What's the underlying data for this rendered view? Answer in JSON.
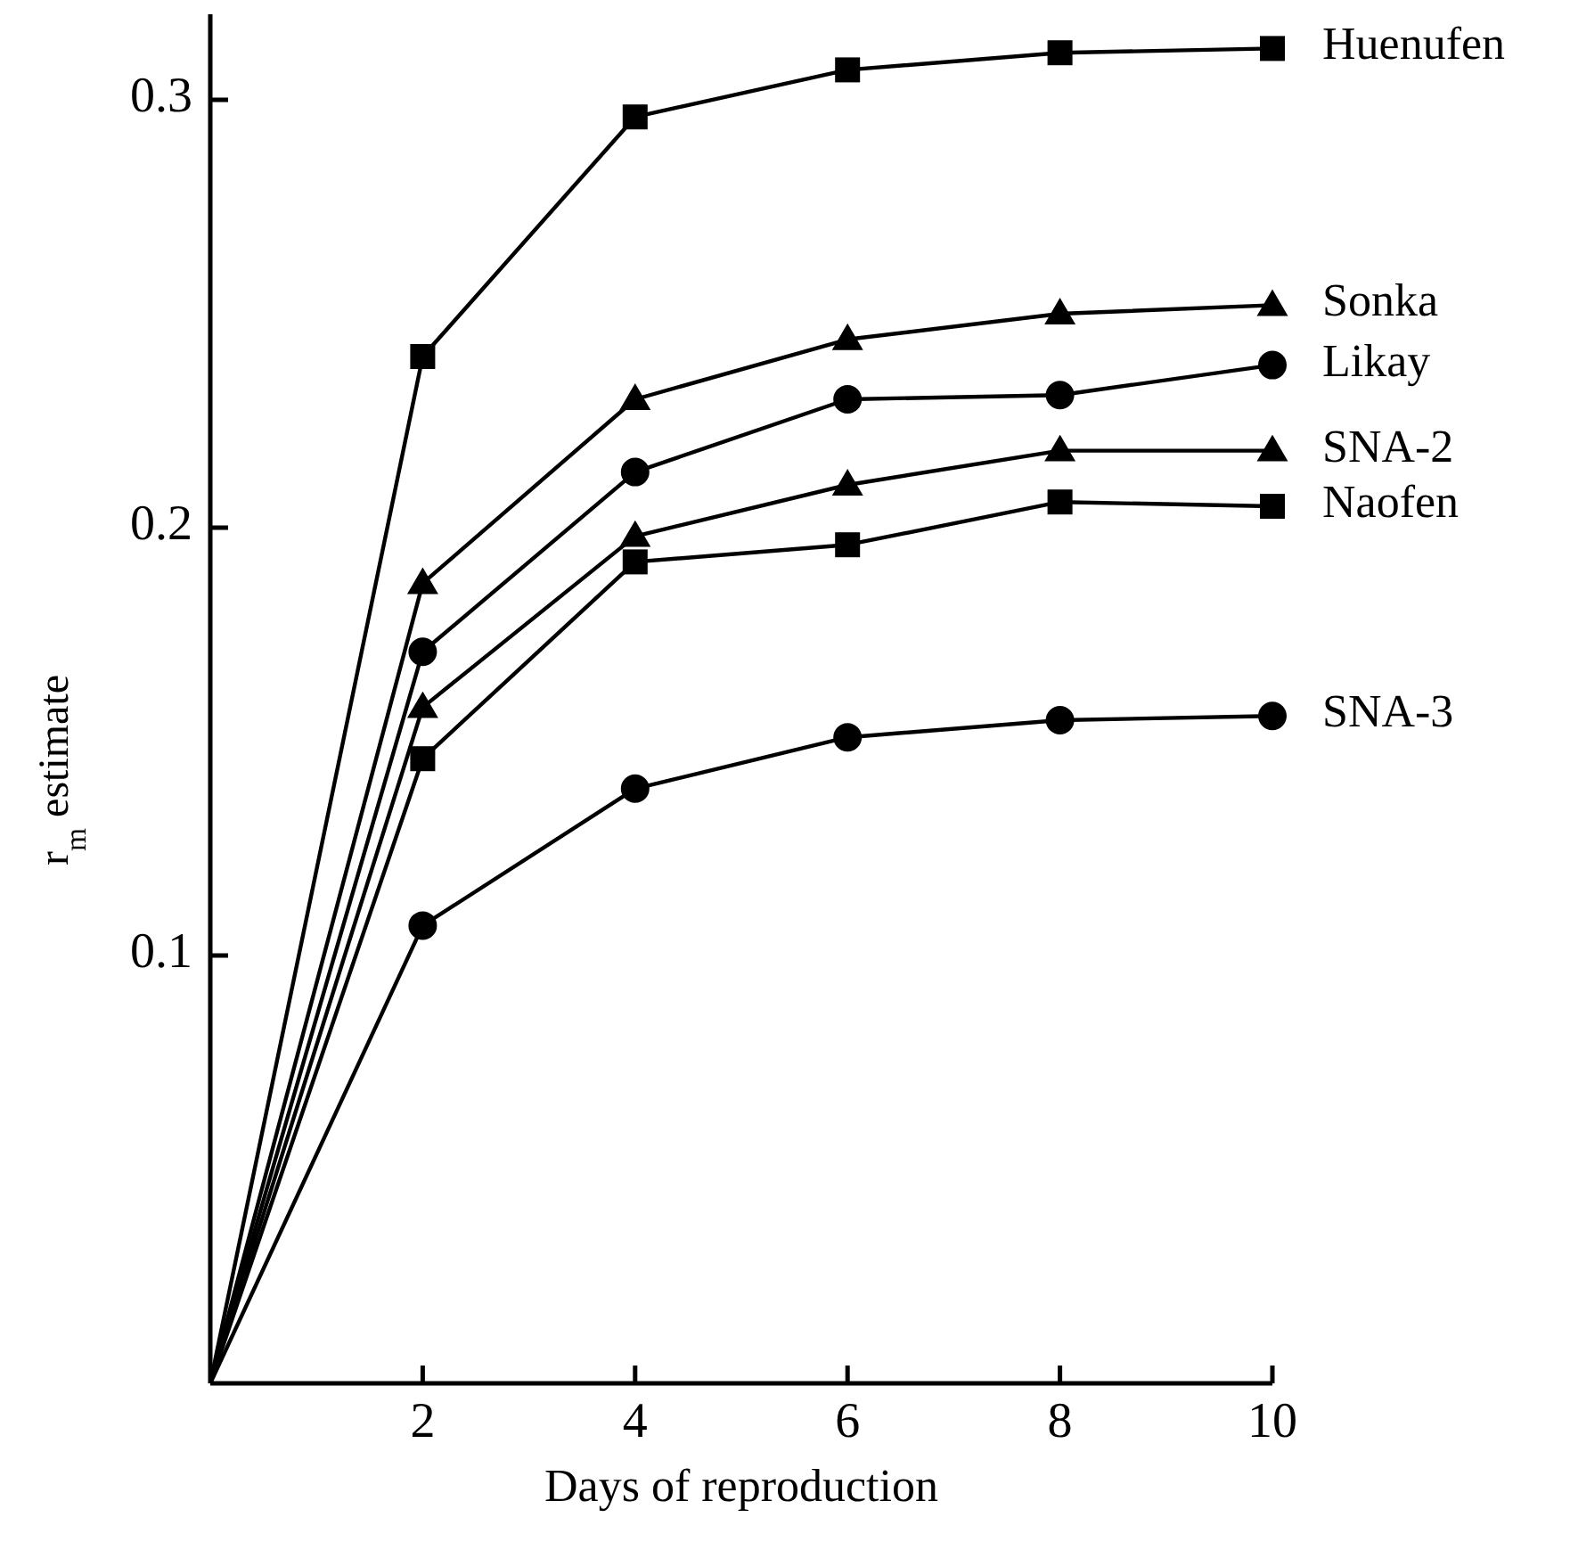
{
  "chart_data": {
    "type": "line",
    "xlabel": "Days of reproduction",
    "ylabel": "r$_{m}$ estimate",
    "xlim": [
      0,
      10
    ],
    "ylim": [
      0,
      0.32
    ],
    "xticks": [
      2,
      4,
      6,
      8,
      10
    ],
    "yticks": [
      0.1,
      0.2,
      0.3
    ],
    "x": [
      0,
      2,
      4,
      6,
      8,
      10
    ],
    "grid": false,
    "legend": false,
    "line_style": "solid",
    "series": [
      {
        "name": "Huenufen",
        "color": "#000000",
        "marker": "square",
        "values": [
          0,
          0.24,
          0.296,
          0.307,
          0.311,
          0.312
        ]
      },
      {
        "name": "Sonka",
        "color": "#000000",
        "marker": "triangle",
        "values": [
          0,
          0.187,
          0.23,
          0.244,
          0.25,
          0.252
        ]
      },
      {
        "name": "Likay",
        "color": "#000000",
        "marker": "circle",
        "values": [
          0,
          0.171,
          0.213,
          0.23,
          0.231,
          0.238
        ]
      },
      {
        "name": "SNA-2",
        "color": "#000000",
        "marker": "triangle",
        "values": [
          0,
          0.158,
          0.198,
          0.21,
          0.218,
          0.218
        ]
      },
      {
        "name": "Naofen",
        "color": "#000000",
        "marker": "square",
        "values": [
          0,
          0.146,
          0.192,
          0.196,
          0.206,
          0.205
        ]
      },
      {
        "name": "SNA-3",
        "color": "#000000",
        "marker": "circle",
        "values": [
          0,
          0.107,
          0.139,
          0.151,
          0.155,
          0.156
        ]
      }
    ]
  }
}
